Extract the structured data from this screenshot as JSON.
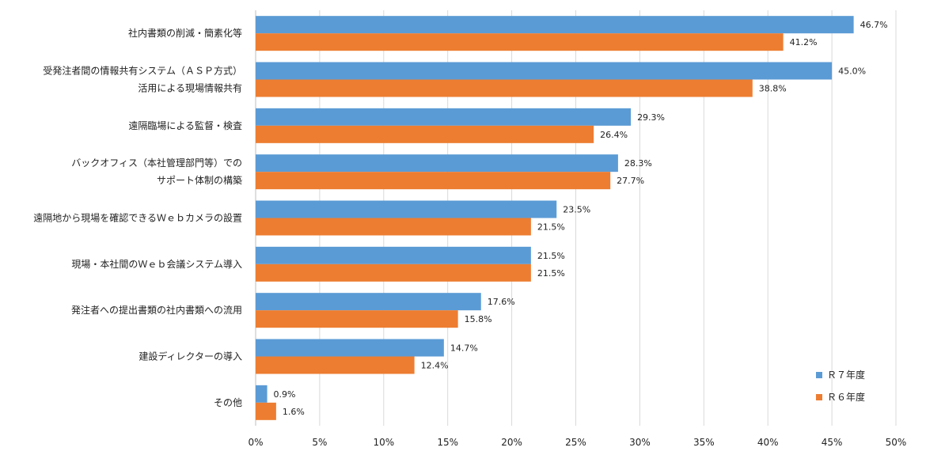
{
  "chart_data": {
    "type": "bar",
    "orientation": "horizontal",
    "categories": [
      [
        "社内書類の削減・簡素化等"
      ],
      [
        "受発注者間の情報共有システム（ＡＳＰ方式）",
        "活用による現場情報共有"
      ],
      [
        "遠隔臨場による監督・検査"
      ],
      [
        "バックオフィス（本社管理部門等）での",
        "サポート体制の構築"
      ],
      [
        "遠隔地から現場を確認できるＷｅｂカメラの設置"
      ],
      [
        "現場・本社間のＷｅｂ会議システム導入"
      ],
      [
        "発注者への提出書類の社内書類への流用"
      ],
      [
        "建設ディレクターの導入"
      ],
      [
        "その他"
      ]
    ],
    "series": [
      {
        "name": "Ｒ７年度",
        "color": "#5B9BD5",
        "values": [
          46.7,
          45.0,
          29.3,
          28.3,
          23.5,
          21.5,
          17.6,
          14.7,
          0.9
        ],
        "labels": [
          "46.7%",
          "45.0%",
          "29.3%",
          "28.3%",
          "23.5%",
          "21.5%",
          "17.6%",
          "14.7%",
          "0.9%"
        ]
      },
      {
        "name": "Ｒ６年度",
        "color": "#ED7D31",
        "values": [
          41.2,
          38.8,
          26.4,
          27.7,
          21.5,
          21.5,
          15.8,
          12.4,
          1.6
        ],
        "labels": [
          "41.2%",
          "38.8%",
          "26.4%",
          "27.7%",
          "21.5%",
          "21.5%",
          "15.8%",
          "12.4%",
          "1.6%"
        ]
      }
    ],
    "xlim": [
      0,
      50
    ],
    "xticks": [
      0,
      5,
      10,
      15,
      20,
      25,
      30,
      35,
      40,
      45,
      50
    ],
    "xtick_labels": [
      "0%",
      "5%",
      "10%",
      "15%",
      "20%",
      "25%",
      "30%",
      "35%",
      "40%",
      "45%",
      "50%"
    ],
    "grid": "vertical",
    "legend_position": "bottom-right",
    "colors": {
      "gridline": "#D9D9D9",
      "axis": "#BFBFBF"
    }
  }
}
